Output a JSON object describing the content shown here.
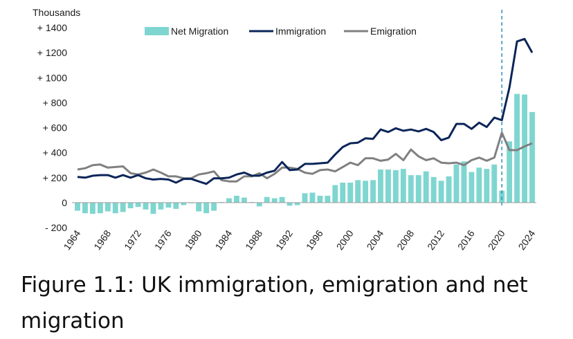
{
  "caption": "Figure 1.1: UK immigration, emigration and net migration",
  "chart_data": {
    "type": "bar+line",
    "yunit": "Thousands",
    "ylim": [
      -200,
      1400
    ],
    "ytick_labels": [
      "+ 1400",
      "+ 1200",
      "+ 1000",
      "+ 800",
      "+ 600",
      "+ 400",
      "+ 200",
      "0",
      "- 200"
    ],
    "ytick_values": [
      1400,
      1200,
      1000,
      800,
      600,
      400,
      200,
      0,
      -200
    ],
    "xtick_years": [
      "1964",
      "1968",
      "1972",
      "1976",
      "1980",
      "1984",
      "1988",
      "1992",
      "1996",
      "2000",
      "2004",
      "2008",
      "2012",
      "2016",
      "2020",
      "2024"
    ],
    "grid": false,
    "legend_position": "top",
    "reference_line": {
      "x": 2020,
      "style": "dashed",
      "color": "#2a8fb8"
    },
    "x": [
      1964,
      1965,
      1966,
      1967,
      1968,
      1969,
      1970,
      1971,
      1972,
      1973,
      1974,
      1975,
      1976,
      1977,
      1978,
      1979,
      1980,
      1981,
      1982,
      1983,
      1984,
      1985,
      1986,
      1987,
      1988,
      1989,
      1990,
      1991,
      1992,
      1993,
      1994,
      1995,
      1996,
      1997,
      1998,
      1999,
      2000,
      2001,
      2002,
      2003,
      2004,
      2005,
      2006,
      2007,
      2008,
      2009,
      2010,
      2011,
      2012,
      2013,
      2014,
      2015,
      2016,
      2017,
      2018,
      2019,
      2020,
      2021,
      2022,
      2023,
      2024
    ],
    "series": [
      {
        "name": "Net Migration",
        "kind": "bar",
        "color": "#7fd6d0",
        "values": [
          -65,
          -85,
          -90,
          -85,
          -70,
          -85,
          -75,
          -45,
          -35,
          -55,
          -90,
          -55,
          -40,
          -50,
          -20,
          -5,
          -70,
          -85,
          -65,
          5,
          35,
          55,
          40,
          5,
          -30,
          45,
          35,
          45,
          -25,
          -20,
          75,
          80,
          55,
          55,
          140,
          160,
          160,
          180,
          175,
          180,
          265,
          265,
          260,
          270,
          220,
          220,
          250,
          205,
          175,
          210,
          305,
          330,
          245,
          280,
          270,
          305,
          95,
          490,
          870,
          865,
          725
        ]
      },
      {
        "name": "Immigration",
        "kind": "line",
        "color": "#0b2559",
        "values": [
          205,
          200,
          215,
          220,
          220,
          200,
          220,
          200,
          220,
          195,
          185,
          190,
          185,
          160,
          190,
          190,
          170,
          150,
          195,
          195,
          200,
          225,
          240,
          215,
          215,
          240,
          255,
          325,
          260,
          265,
          310,
          310,
          315,
          320,
          385,
          445,
          475,
          480,
          515,
          510,
          585,
          565,
          595,
          575,
          585,
          570,
          590,
          565,
          500,
          520,
          630,
          630,
          590,
          640,
          605,
          680,
          660,
          920,
          1290,
          1310,
          1200
        ]
      },
      {
        "name": "Emigration",
        "kind": "line",
        "color": "#808080",
        "values": [
          265,
          275,
          300,
          305,
          280,
          285,
          290,
          235,
          225,
          240,
          265,
          240,
          210,
          210,
          195,
          195,
          225,
          235,
          250,
          180,
          170,
          170,
          210,
          210,
          235,
          195,
          230,
          280,
          280,
          270,
          240,
          230,
          260,
          265,
          250,
          285,
          320,
          300,
          355,
          355,
          335,
          345,
          390,
          340,
          425,
          370,
          340,
          355,
          320,
          315,
          320,
          300,
          340,
          360,
          335,
          360,
          560,
          420,
          420,
          450,
          475
        ]
      }
    ]
  }
}
